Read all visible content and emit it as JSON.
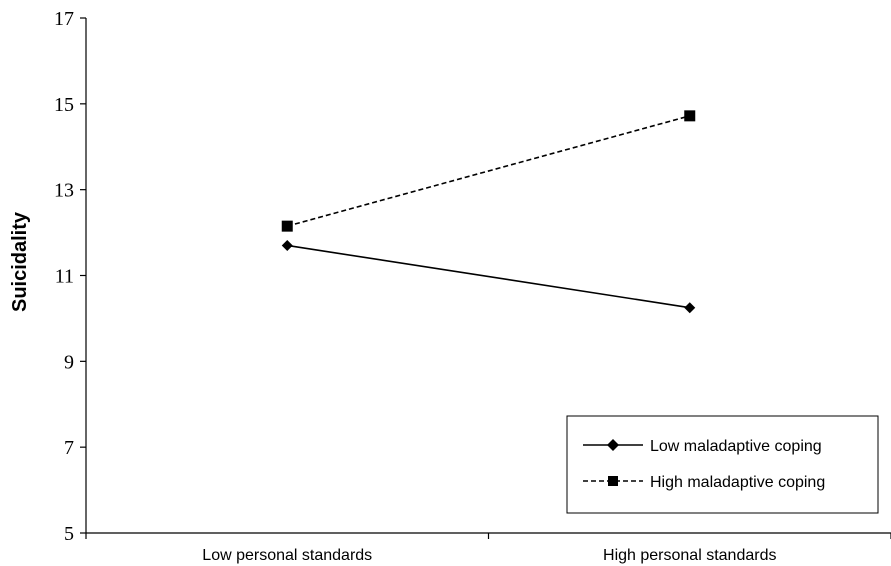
{
  "chart_data": {
    "type": "line",
    "categories": [
      "Low personal standards",
      "High personal standards"
    ],
    "series": [
      {
        "name": "Low maladaptive coping",
        "values": [
          11.7,
          10.25
        ],
        "marker": "diamond",
        "dash": "solid"
      },
      {
        "name": "High maladaptive coping",
        "values": [
          12.15,
          14.72
        ],
        "marker": "square",
        "dash": "dashed"
      }
    ],
    "ylabel": "Suicidality",
    "xlabel": "",
    "ylim": [
      5,
      17
    ],
    "yticks": [
      5,
      7,
      9,
      11,
      13,
      15,
      17
    ],
    "grid": false,
    "legend_position": "bottom-right",
    "line_color": "#000000"
  }
}
